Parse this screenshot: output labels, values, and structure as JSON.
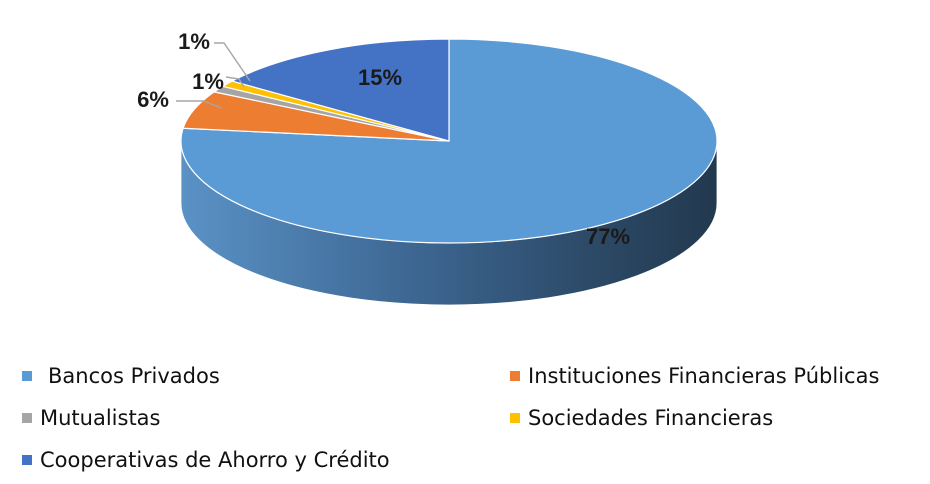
{
  "chart_data": {
    "type": "pie",
    "style": "3d",
    "title": "",
    "slices": [
      {
        "label": "Bancos Privados",
        "value": 77,
        "display": "77%",
        "color": "#5b9bd5",
        "side_color": "#3f709e"
      },
      {
        "label": "Instituciones Financieras Públicas",
        "value": 6,
        "display": "6%",
        "color": "#ed7d31",
        "side_color": "#b35c22"
      },
      {
        "label": "Mutualistas",
        "value": 1,
        "display": "1%",
        "color": "#a5a5a5",
        "side_color": "#7a7a7a"
      },
      {
        "label": "Sociedades Financieras",
        "value": 1,
        "display": "1%",
        "color": "#ffc000",
        "side_color": "#c29200"
      },
      {
        "label": "Cooperativas de Ahorro y Crédito",
        "value": 15,
        "display": "15%",
        "color": "#4472c4",
        "side_color": "#2e4f8a"
      }
    ],
    "legend_position": "bottom",
    "start": "12 o'clock",
    "direction": "clockwise"
  }
}
